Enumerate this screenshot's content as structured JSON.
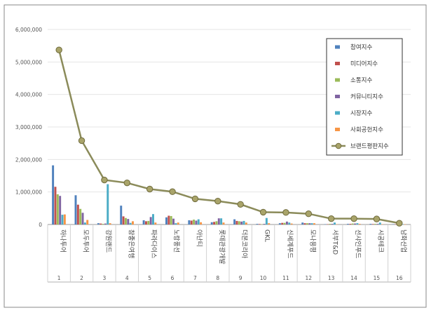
{
  "chart_data": {
    "type": "bar",
    "categories": [
      "하나투어",
      "모두투어",
      "강원랜드",
      "참좋은여행",
      "파라다이스",
      "노랑풍선",
      "아난티",
      "롯데관광개발",
      "더본코리아",
      "GKL",
      "신세계푸드",
      "모나용평",
      "서부T&D",
      "선샤인푸드",
      "시공테크",
      "남화산업"
    ],
    "category_numbers": [
      "1",
      "2",
      "3",
      "4",
      "5",
      "6",
      "7",
      "8",
      "9",
      "10",
      "11",
      "12",
      "13",
      "14",
      "15",
      "16"
    ],
    "yticks": [
      "0",
      "1,000,000",
      "2,000,000",
      "3,000,000",
      "4,000,000",
      "5,000,000",
      "6,000,000"
    ],
    "ylim": [
      0,
      6000000
    ],
    "legend_position": "top-right",
    "series": [
      {
        "name": "참여지수",
        "color": "#4f81bd",
        "kind": "bar",
        "values": [
          1820000,
          900000,
          40000,
          580000,
          130000,
          220000,
          130000,
          70000,
          160000,
          20000,
          40000,
          60000,
          10000,
          20000,
          20000,
          10000
        ]
      },
      {
        "name": "미디어지수",
        "color": "#c0504d",
        "kind": "bar",
        "values": [
          1160000,
          610000,
          30000,
          250000,
          100000,
          270000,
          120000,
          80000,
          110000,
          15000,
          50000,
          40000,
          10000,
          20000,
          15000,
          8000
        ]
      },
      {
        "name": "소통지수",
        "color": "#9bbb59",
        "kind": "bar",
        "values": [
          930000,
          480000,
          20000,
          200000,
          110000,
          260000,
          150000,
          100000,
          100000,
          10000,
          50000,
          40000,
          20000,
          30000,
          20000,
          8000
        ]
      },
      {
        "name": "커뮤니티지수",
        "color": "#8064a2",
        "kind": "bar",
        "values": [
          880000,
          360000,
          30000,
          170000,
          230000,
          180000,
          120000,
          190000,
          90000,
          20000,
          90000,
          40000,
          20000,
          30000,
          20000,
          8000
        ]
      },
      {
        "name": "시장지수",
        "color": "#4bacc6",
        "kind": "bar",
        "values": [
          300000,
          60000,
          1240000,
          50000,
          320000,
          40000,
          160000,
          190000,
          110000,
          200000,
          60000,
          40000,
          60000,
          40000,
          60000,
          10000
        ]
      },
      {
        "name": "사회공헌지수",
        "color": "#f79646",
        "kind": "bar",
        "values": [
          310000,
          140000,
          40000,
          100000,
          60000,
          60000,
          70000,
          60000,
          60000,
          40000,
          30000,
          40000,
          10000,
          20000,
          10000,
          5000
        ]
      },
      {
        "name": "브랜드평판지수",
        "color": "#8b8b5a",
        "kind": "line",
        "values": [
          5370000,
          2580000,
          1370000,
          1280000,
          1090000,
          1010000,
          790000,
          720000,
          620000,
          380000,
          370000,
          330000,
          180000,
          180000,
          170000,
          40000
        ]
      }
    ]
  }
}
